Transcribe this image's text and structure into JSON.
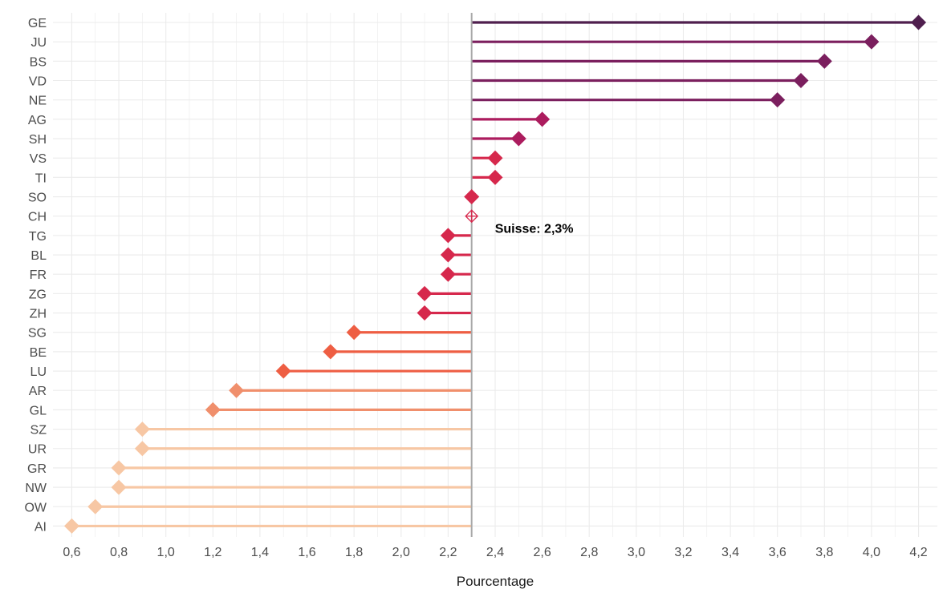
{
  "chart_data": {
    "type": "lollipop",
    "xlabel": "Pourcentage",
    "ylabel": "",
    "xlim": [
      0.52,
      4.28
    ],
    "reference": 2.3,
    "reference_category": "CH",
    "annotation": "Suisse: 2,3%",
    "x_ticks": [
      "0,6",
      "0,8",
      "1,0",
      "1,2",
      "1,4",
      "1,6",
      "1,8",
      "2,0",
      "2,2",
      "2,4",
      "2,6",
      "2,8",
      "3,0",
      "3,2",
      "3,4",
      "3,6",
      "3,8",
      "4,0",
      "4,2"
    ],
    "x_tick_values": [
      0.6,
      0.8,
      1.0,
      1.2,
      1.4,
      1.6,
      1.8,
      2.0,
      2.2,
      2.4,
      2.6,
      2.8,
      3.0,
      3.2,
      3.4,
      3.6,
      3.8,
      4.0,
      4.2
    ],
    "grid": true,
    "categories": [
      "GE",
      "JU",
      "BS",
      "VD",
      "NE",
      "AG",
      "SH",
      "VS",
      "TI",
      "SO",
      "CH",
      "TG",
      "BL",
      "FR",
      "ZG",
      "ZH",
      "SG",
      "BE",
      "LU",
      "AR",
      "GL",
      "SZ",
      "UR",
      "GR",
      "NW",
      "OW",
      "AI"
    ],
    "values": [
      4.2,
      4.0,
      3.8,
      3.7,
      3.6,
      2.6,
      2.5,
      2.4,
      2.4,
      2.3,
      2.3,
      2.2,
      2.2,
      2.2,
      2.1,
      2.1,
      1.8,
      1.7,
      1.5,
      1.3,
      1.2,
      0.9,
      0.9,
      0.8,
      0.8,
      0.7,
      0.6
    ],
    "colors": [
      "#4f1f4e",
      "#7b1f5e",
      "#7b1f5e",
      "#7b1f5e",
      "#7b1f5e",
      "#ac1c5e",
      "#ac1c5e",
      "#d6284c",
      "#d6284c",
      "#d6284c",
      "#d6284c",
      "#d6284c",
      "#d6284c",
      "#d6284c",
      "#d6284c",
      "#d6284c",
      "#ee5e43",
      "#ee5e43",
      "#ee5e43",
      "#f08f6c",
      "#f08f6c",
      "#f7c7a4",
      "#f7c7a4",
      "#f7c7a4",
      "#f7c7a4",
      "#f7c7a4",
      "#f7c7a4"
    ]
  },
  "colors": {
    "grid": "#ebebeb",
    "reference_line": "#a9a9a9"
  }
}
